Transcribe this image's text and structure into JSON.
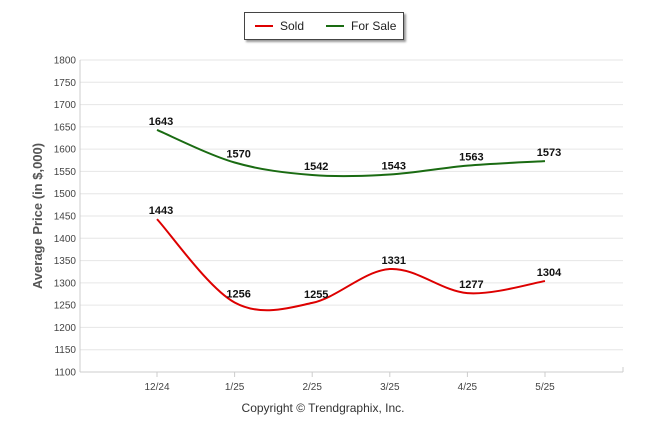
{
  "chart_data": {
    "type": "line",
    "categories": [
      "12/24",
      "1/25",
      "2/25",
      "3/25",
      "4/25",
      "5/25"
    ],
    "series": [
      {
        "name": "Sold",
        "color": "#dd0000",
        "values": [
          1443,
          1256,
          1255,
          1331,
          1277,
          1304
        ]
      },
      {
        "name": "For Sale",
        "color": "#1a6b12",
        "values": [
          1643,
          1570,
          1542,
          1543,
          1563,
          1573
        ]
      }
    ],
    "ylabel": "Average Price (in $,000)",
    "xlabel": "",
    "ylim": [
      1100,
      1800
    ],
    "yticks": [
      1100,
      1150,
      1200,
      1250,
      1300,
      1350,
      1400,
      1450,
      1500,
      1550,
      1600,
      1650,
      1700,
      1750,
      1800
    ],
    "grid": true,
    "legend_position": "top-center"
  },
  "credit": "Copyright © Trendgraphix, Inc."
}
